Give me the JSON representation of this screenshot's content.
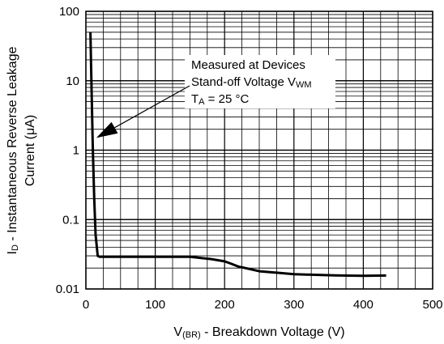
{
  "chart_data": {
    "type": "line",
    "xlabel": {
      "main": "V",
      "sub": "(BR)",
      "rest": " - Breakdown Voltage (V)"
    },
    "ylabel": {
      "line1_pre": "I",
      "line1_sub": "D",
      "line1_rest": " - Instantaneous Reverse Leakage",
      "line2": "Current (μA)"
    },
    "x_ticks": [
      0,
      100,
      200,
      300,
      400,
      500
    ],
    "x_tick_labels": [
      "0",
      "100",
      "200",
      "300",
      "400",
      "500"
    ],
    "y_ticks": [
      0.01,
      0.1,
      1,
      10,
      100
    ],
    "y_tick_labels": [
      "0.01",
      "0.1",
      "1",
      "10",
      "100"
    ],
    "xlim": [
      0,
      500
    ],
    "ylim": [
      0.01,
      100
    ],
    "y_scale": "log",
    "grid": true,
    "series": [
      {
        "x": [
          6.5,
          8,
          10,
          12,
          14,
          17,
          20,
          30,
          50,
          100,
          150,
          180,
          200,
          210,
          220,
          230,
          250,
          280,
          300,
          330,
          360,
          400,
          433
        ],
        "y": [
          50,
          10,
          1,
          0.2,
          0.06,
          0.03,
          0.029,
          0.029,
          0.029,
          0.029,
          0.029,
          0.027,
          0.025,
          0.023,
          0.021,
          0.02,
          0.018,
          0.017,
          0.0163,
          0.016,
          0.0157,
          0.0155,
          0.0156
        ]
      }
    ],
    "annotation": {
      "line1": "Measured at Devices",
      "line2_pre": "Stand-off Voltage V",
      "line2_sub": "WM",
      "line3_pre": "T",
      "line3_sub": "A",
      "line3_rest": " = 25 °C",
      "arrow_target": {
        "x": 15,
        "y": 1.5
      }
    }
  }
}
